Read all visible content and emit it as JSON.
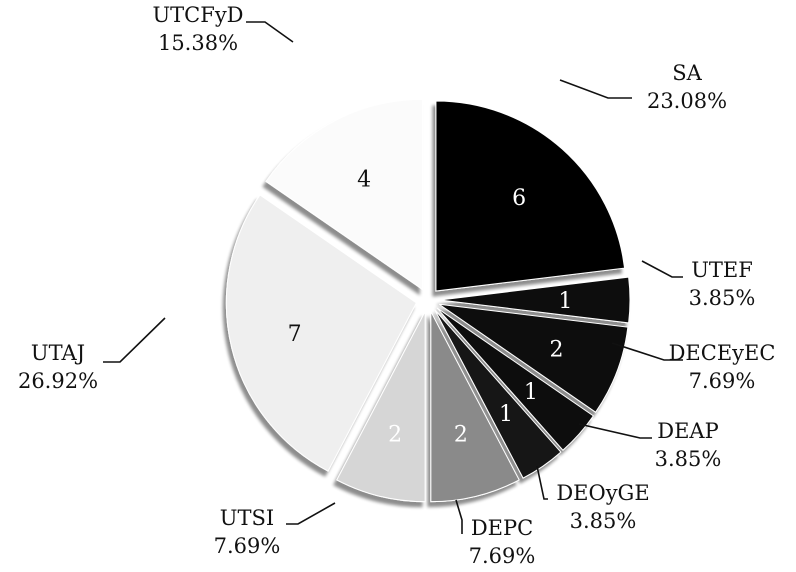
{
  "chart_data": {
    "type": "pie",
    "title": "",
    "legend": "none",
    "slices": [
      {
        "label": "SA",
        "value": 6,
        "percent": "23.08%",
        "color": "#050505",
        "value_color": "#ffffff"
      },
      {
        "label": "UTEF",
        "value": 1,
        "percent": "3.85%",
        "color": "#0a0a0a",
        "value_color": "#ffffff"
      },
      {
        "label": "DECEyEC",
        "value": 2,
        "percent": "7.69%",
        "color": "#080808",
        "value_color": "#ffffff"
      },
      {
        "label": "DEAP",
        "value": 1,
        "percent": "3.85%",
        "color": "#0c0c0c",
        "value_color": "#ffffff"
      },
      {
        "label": "DEOyGE",
        "value": 1,
        "percent": "3.85%",
        "color": "#141414",
        "value_color": "#ffffff"
      },
      {
        "label": "DEPC",
        "value": 2,
        "percent": "7.69%",
        "color": "#8a8a8a",
        "value_color": "#ffffff"
      },
      {
        "label": "UTSI",
        "value": 2,
        "percent": "7.69%",
        "color": "#d6d6d6",
        "value_color": "#ffffff"
      },
      {
        "label": "UTAJ",
        "value": 7,
        "percent": "26.92%",
        "color": "#efefef",
        "value_color": "#111111"
      },
      {
        "label": "UTCFyD",
        "value": 4,
        "percent": "15.38%",
        "color": "#fbfbfb",
        "value_color": "#111111"
      }
    ]
  }
}
